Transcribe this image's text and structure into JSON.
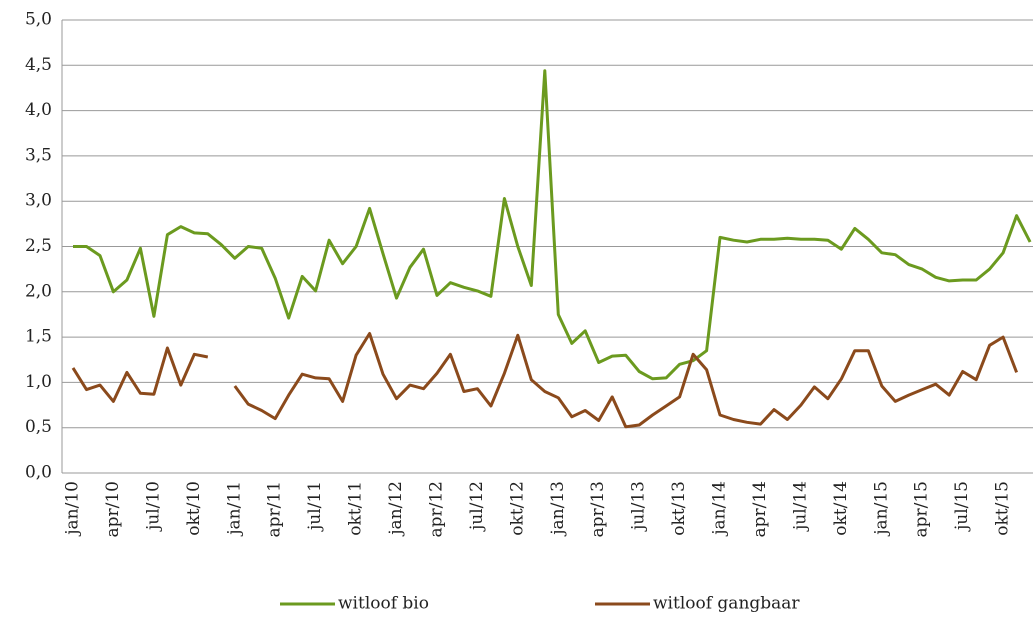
{
  "chart_data": {
    "type": "line",
    "categories": [
      "jan/10",
      null,
      null,
      "apr/10",
      null,
      null,
      "jul/10",
      null,
      null,
      "okt/10",
      null,
      null,
      "jan/11",
      null,
      null,
      "apr/11",
      null,
      null,
      "jul/11",
      null,
      null,
      "okt/11",
      null,
      null,
      "jan/12",
      null,
      null,
      "apr/12",
      null,
      null,
      "jul/12",
      null,
      null,
      "okt/12",
      null,
      null,
      "jan/13",
      null,
      null,
      "apr/13",
      null,
      null,
      "jul/13",
      null,
      null,
      "okt/13",
      null,
      null,
      "jan/14",
      null,
      null,
      "apr/14",
      null,
      null,
      "jul/14",
      null,
      null,
      "okt/14",
      null,
      null,
      "jan/15",
      null,
      null,
      "apr/15",
      null,
      null,
      "jul/15",
      null,
      null,
      "okt/15",
      null,
      null
    ],
    "series": [
      {
        "name": "witloof bio",
        "color": "#6b9a1f",
        "values": [
          2.5,
          2.5,
          2.4,
          2.0,
          2.13,
          2.48,
          1.73,
          2.63,
          2.72,
          2.65,
          2.64,
          2.52,
          2.37,
          2.5,
          2.48,
          2.15,
          1.71,
          2.17,
          2.01,
          2.57,
          2.31,
          2.5,
          2.92,
          2.42,
          1.93,
          2.27,
          2.47,
          1.96,
          2.1,
          2.05,
          2.01,
          1.95,
          3.03,
          2.5,
          2.07,
          4.44,
          1.75,
          1.43,
          1.57,
          1.22,
          1.29,
          1.3,
          1.12,
          1.04,
          1.05,
          1.2,
          1.24,
          1.35,
          2.6,
          2.57,
          2.55,
          2.58,
          2.58,
          2.59,
          2.58,
          2.58,
          2.57,
          2.47,
          2.7,
          2.58,
          2.43,
          2.41,
          2.3,
          2.25,
          2.16,
          2.12,
          2.13,
          2.13,
          2.25,
          2.43,
          2.84,
          2.55
        ]
      },
      {
        "name": "witloof gangbaar",
        "color": "#8b4a1c",
        "values": [
          1.16,
          0.92,
          0.97,
          0.79,
          1.11,
          0.88,
          0.87,
          1.38,
          0.97,
          1.31,
          1.28,
          null,
          0.96,
          0.76,
          0.69,
          0.6,
          0.86,
          1.09,
          1.05,
          1.04,
          0.79,
          1.3,
          1.54,
          1.09,
          0.82,
          0.97,
          0.93,
          1.1,
          1.31,
          0.9,
          0.93,
          0.74,
          1.1,
          1.52,
          1.03,
          0.9,
          0.83,
          0.62,
          0.69,
          0.58,
          0.84,
          0.51,
          0.53,
          0.64,
          0.74,
          0.84,
          1.31,
          1.14,
          0.64,
          0.59,
          0.56,
          0.54,
          0.7,
          0.59,
          0.75,
          0.95,
          0.82,
          1.04,
          1.35,
          1.35,
          0.96,
          0.79,
          0.86,
          0.92,
          0.98,
          0.86,
          1.12,
          1.03,
          1.41,
          1.5,
          1.11,
          null
        ]
      }
    ],
    "ylim": [
      0,
      5
    ],
    "yticks": [
      {
        "value": 0,
        "label": "0,0"
      },
      {
        "value": 0.5,
        "label": "0,5"
      },
      {
        "value": 1,
        "label": "1,0"
      },
      {
        "value": 1.5,
        "label": "1,5"
      },
      {
        "value": 2,
        "label": "2,0"
      },
      {
        "value": 2.5,
        "label": "2,5"
      },
      {
        "value": 3,
        "label": "3,0"
      },
      {
        "value": 3.5,
        "label": "3,5"
      },
      {
        "value": 4,
        "label": "4,0"
      },
      {
        "value": 4.5,
        "label": "4,5"
      },
      {
        "value": 5,
        "label": "5,0"
      }
    ],
    "grid": true
  }
}
